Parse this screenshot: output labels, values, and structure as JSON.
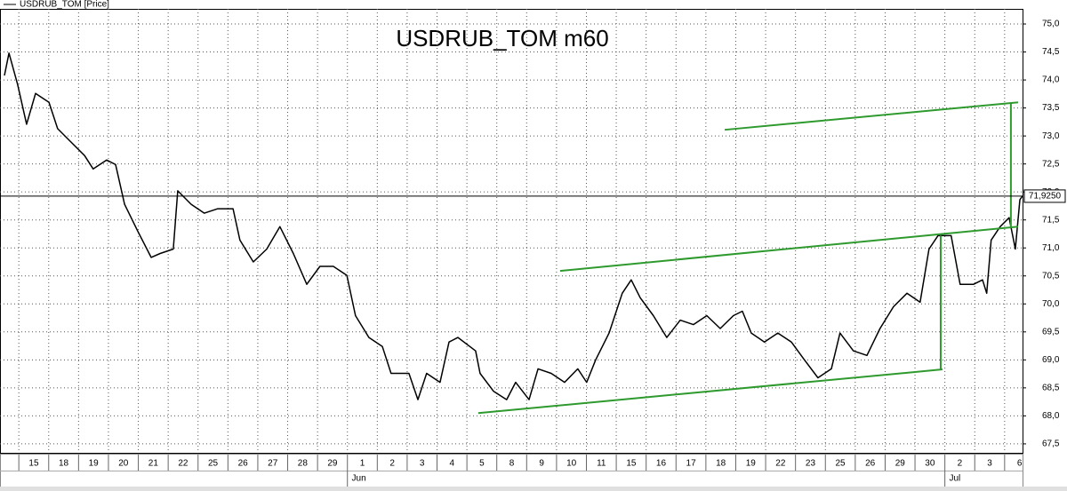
{
  "chart_data": {
    "type": "line",
    "title": "USDRUB_TOM m60",
    "legend_label": "USDRUB_TOM [Price]",
    "categories": [
      "15",
      "18",
      "19",
      "20",
      "21",
      "22",
      "25",
      "26",
      "27",
      "28",
      "29",
      "1",
      "2",
      "3",
      "4",
      "5",
      "8",
      "9",
      "10",
      "11",
      "15",
      "16",
      "17",
      "18",
      "19",
      "22",
      "23",
      "25",
      "26",
      "29",
      "30",
      "2",
      "3",
      "6"
    ],
    "x_secondary": [
      {
        "value": 11,
        "label": "Jun"
      },
      {
        "value": 31,
        "label": "Jul"
      }
    ],
    "xlim": [
      -1.13,
      33.1
    ],
    "ylim": [
      67.34,
      75.27
    ],
    "yticks": [
      {
        "value": 67.5,
        "label": "67,5"
      },
      {
        "value": 68,
        "label": "68,0"
      },
      {
        "value": 68.5,
        "label": "68,5"
      },
      {
        "value": 69,
        "label": "69,0"
      },
      {
        "value": 69.5,
        "label": "69,5"
      },
      {
        "value": 70,
        "label": "70,0"
      },
      {
        "value": 70.5,
        "label": "70,5"
      },
      {
        "value": 71,
        "label": "71,0"
      },
      {
        "value": 71.5,
        "label": "71,5"
      },
      {
        "value": 72,
        "label": "72,0"
      },
      {
        "value": 72.5,
        "label": "72,5"
      },
      {
        "value": 73,
        "label": "73,0"
      },
      {
        "value": 73.5,
        "label": "73,5"
      },
      {
        "value": 74,
        "label": "74,0"
      },
      {
        "value": 74.5,
        "label": "74,5"
      },
      {
        "value": 75,
        "label": "75,0"
      }
    ],
    "grid": true,
    "last_price": {
      "value": 71.925,
      "label": "71,9250"
    },
    "series": [
      {
        "name": "USDRUB_TOM [Price]",
        "color": "#000000",
        "x": [
          -0.98,
          -0.83,
          -0.54,
          -0.24,
          0.06,
          0.51,
          0.8,
          1.25,
          1.7,
          1.99,
          2.44,
          2.74,
          3.04,
          3.48,
          3.93,
          4.23,
          4.67,
          4.82,
          5.27,
          5.71,
          6.16,
          6.67,
          6.9,
          7.35,
          7.8,
          8.24,
          8.69,
          9.14,
          9.58,
          10.03,
          10.48,
          10.77,
          11.22,
          11.67,
          11.96,
          12.56,
          12.86,
          13.15,
          13.6,
          13.9,
          14.2,
          14.79,
          14.94,
          15.39,
          15.83,
          16.13,
          16.58,
          16.88,
          17.32,
          17.77,
          18.21,
          18.51,
          18.81,
          19.26,
          19.7,
          20.0,
          20.3,
          20.74,
          21.19,
          21.64,
          22.08,
          22.53,
          22.98,
          23.42,
          23.72,
          24.02,
          24.46,
          24.91,
          25.36,
          25.8,
          26.25,
          26.7,
          26.99,
          27.44,
          27.89,
          28.33,
          28.78,
          29.23,
          29.67,
          29.97,
          30.27,
          30.71,
          31.01,
          31.46,
          31.76,
          31.9,
          32.05,
          32.35,
          32.65,
          32.86,
          33.01,
          33.1
        ],
        "values": [
          74.08,
          74.48,
          73.92,
          73.21,
          73.76,
          73.6,
          73.13,
          72.89,
          72.65,
          72.41,
          72.57,
          72.49,
          71.78,
          71.3,
          70.83,
          70.9,
          70.98,
          72.02,
          71.78,
          71.62,
          71.7,
          71.7,
          71.14,
          70.75,
          70.98,
          71.38,
          70.9,
          70.35,
          70.67,
          70.67,
          70.51,
          69.79,
          69.4,
          69.24,
          68.76,
          68.76,
          68.29,
          68.76,
          68.6,
          69.32,
          69.4,
          69.16,
          68.76,
          68.44,
          68.29,
          68.6,
          68.29,
          68.84,
          68.76,
          68.6,
          68.84,
          68.6,
          69.0,
          69.48,
          70.19,
          70.43,
          70.11,
          69.79,
          69.4,
          69.71,
          69.63,
          69.79,
          69.56,
          69.79,
          69.87,
          69.48,
          69.32,
          69.48,
          69.32,
          69.0,
          68.68,
          68.84,
          69.48,
          69.16,
          69.08,
          69.56,
          69.95,
          70.19,
          70.03,
          70.98,
          71.22,
          71.22,
          70.35,
          70.35,
          70.43,
          70.19,
          71.14,
          71.38,
          71.54,
          70.98,
          71.86,
          71.93
        ]
      }
    ],
    "trend_lines": {
      "color": "#2e9a2e",
      "lines": [
        {
          "x": [
            14.88,
            30.42
          ],
          "y": [
            68.05,
            68.83
          ]
        },
        {
          "x": [
            17.62,
            32.95
          ],
          "y": [
            70.59,
            71.38
          ]
        },
        {
          "x": [
            23.13,
            32.95
          ],
          "y": [
            73.11,
            73.6
          ]
        },
        {
          "x": [
            30.36,
            30.36
          ],
          "y": [
            68.83,
            71.22
          ]
        },
        {
          "x": [
            32.71,
            32.71
          ],
          "y": [
            73.6,
            71.38
          ]
        }
      ]
    }
  }
}
